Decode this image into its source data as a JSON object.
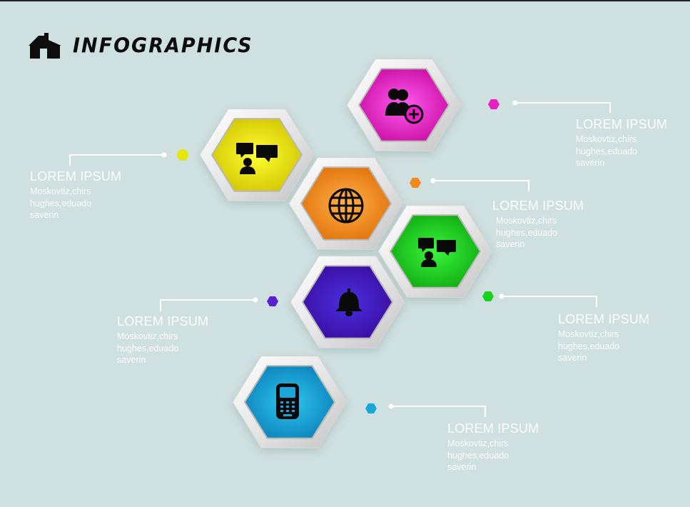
{
  "title": "INFOGRAPHICS",
  "title_icon": "house-icon",
  "items": [
    {
      "id": "pink",
      "color": "#e81fc4",
      "icon": "add-user-icon",
      "heading": "LOREM IPSUM",
      "lines": [
        "Moskovtiz,chirs",
        "hughes,eduado",
        "saverin"
      ]
    },
    {
      "id": "yellow",
      "color": "#e6e60a",
      "icon": "chat-user-icon",
      "heading": "LOREM IPSUM",
      "lines": [
        "Moskovtiz,chirs",
        "hughes,eduado",
        "saverin"
      ]
    },
    {
      "id": "orange",
      "color": "#f28a1c",
      "icon": "globe-icon",
      "heading": "LOREM IPSUM",
      "lines": [
        "Moskovtiz,chirs",
        "hughes,eduado",
        "saverin"
      ]
    },
    {
      "id": "green",
      "color": "#17d11a",
      "icon": "chat-user-icon",
      "heading": "LOREM IPSUM",
      "lines": [
        "Moskovtiz,chirs",
        "hughes,eduado",
        "saverin"
      ]
    },
    {
      "id": "purple",
      "color": "#5a1fcf",
      "icon": "bell-icon",
      "heading": "LOREM IPSUM",
      "lines": [
        "Moskovtiz,chirs",
        "hughes,eduado",
        "saverin"
      ]
    },
    {
      "id": "cyan",
      "color": "#1aa6d8",
      "icon": "phone-icon",
      "heading": "LOREM IPSUM",
      "lines": [
        "Moskovtiz,chirs",
        "hughes,eduado",
        "saverin"
      ]
    }
  ]
}
